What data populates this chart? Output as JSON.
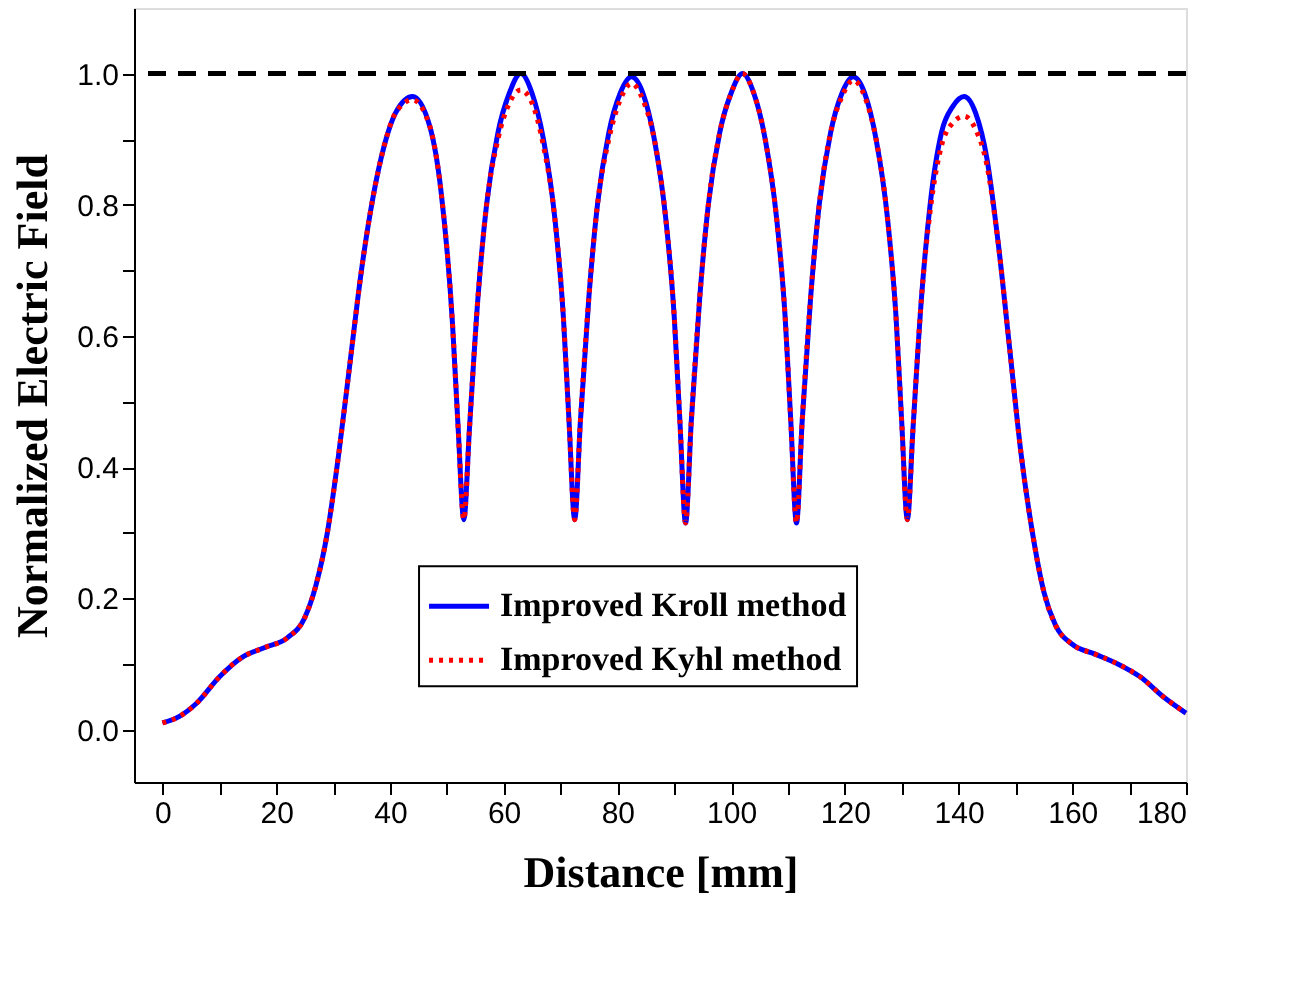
{
  "chart_data": {
    "type": "line",
    "xlabel": "Distance [mm]",
    "ylabel": "Normalized Electric Field",
    "x": [
      0,
      3,
      6,
      10,
      14,
      18,
      22,
      25,
      27,
      29,
      31,
      33,
      35,
      37,
      39,
      41,
      44,
      47,
      49,
      51,
      52,
      53,
      54,
      55.5,
      57,
      59,
      61,
      63,
      65,
      67,
      69,
      70.5,
      71.5,
      72.5,
      73.5,
      75,
      76.5,
      78.5,
      80.5,
      82.5,
      84.5,
      86.5,
      88.5,
      90,
      91,
      92,
      93,
      94.5,
      96,
      98,
      100,
      102,
      104,
      106,
      108,
      109.5,
      110.5,
      111.5,
      112.5,
      114,
      115.5,
      117.5,
      119.5,
      121.5,
      123.5,
      125.5,
      127.5,
      129,
      130,
      131,
      132,
      133.5,
      135,
      137,
      139,
      141,
      143,
      145,
      147,
      149,
      151,
      153,
      155,
      157,
      160,
      164,
      168,
      172,
      176,
      180
    ],
    "series": [
      {
        "name": "Improved Kroll method",
        "color": "#0000ff",
        "line_style": "solid",
        "values": [
          0.01,
          0.02,
          0.04,
          0.08,
          0.11,
          0.125,
          0.14,
          0.17,
          0.22,
          0.3,
          0.42,
          0.56,
          0.7,
          0.81,
          0.89,
          0.94,
          0.965,
          0.92,
          0.82,
          0.62,
          0.46,
          0.32,
          0.46,
          0.66,
          0.8,
          0.91,
          0.97,
          1.0,
          0.97,
          0.9,
          0.78,
          0.63,
          0.47,
          0.32,
          0.47,
          0.66,
          0.8,
          0.91,
          0.97,
          0.995,
          0.97,
          0.9,
          0.78,
          0.63,
          0.47,
          0.315,
          0.47,
          0.66,
          0.8,
          0.91,
          0.97,
          1.0,
          0.97,
          0.9,
          0.78,
          0.63,
          0.47,
          0.315,
          0.47,
          0.66,
          0.8,
          0.91,
          0.97,
          0.995,
          0.97,
          0.9,
          0.78,
          0.63,
          0.47,
          0.32,
          0.46,
          0.66,
          0.8,
          0.91,
          0.95,
          0.965,
          0.94,
          0.87,
          0.74,
          0.58,
          0.42,
          0.3,
          0.21,
          0.16,
          0.13,
          0.115,
          0.1,
          0.08,
          0.05,
          0.025
        ]
      },
      {
        "name": "Improved Kyhl method",
        "color": "#ff0000",
        "line_style": "dotted",
        "values": [
          0.01,
          0.02,
          0.04,
          0.08,
          0.11,
          0.125,
          0.14,
          0.17,
          0.22,
          0.3,
          0.42,
          0.56,
          0.7,
          0.81,
          0.89,
          0.94,
          0.96,
          0.92,
          0.82,
          0.62,
          0.46,
          0.32,
          0.46,
          0.66,
          0.8,
          0.9,
          0.955,
          0.975,
          0.955,
          0.89,
          0.78,
          0.63,
          0.47,
          0.32,
          0.47,
          0.66,
          0.8,
          0.9,
          0.96,
          0.985,
          0.96,
          0.9,
          0.78,
          0.63,
          0.47,
          0.315,
          0.47,
          0.66,
          0.8,
          0.91,
          0.97,
          1.0,
          0.97,
          0.9,
          0.78,
          0.63,
          0.47,
          0.315,
          0.47,
          0.66,
          0.8,
          0.91,
          0.965,
          0.99,
          0.965,
          0.9,
          0.78,
          0.63,
          0.47,
          0.32,
          0.46,
          0.66,
          0.79,
          0.89,
          0.925,
          0.935,
          0.915,
          0.86,
          0.74,
          0.58,
          0.42,
          0.3,
          0.21,
          0.16,
          0.13,
          0.115,
          0.1,
          0.08,
          0.05,
          0.025
        ]
      }
    ],
    "xlim": [
      -5,
      180
    ],
    "ylim": [
      -0.08,
      1.1
    ],
    "xticks": [
      0,
      {
        "value": 10,
        "label": null
      },
      20,
      {
        "value": 30,
        "label": null
      },
      40,
      {
        "value": 50,
        "label": null
      },
      60,
      {
        "value": 70,
        "label": null
      },
      80,
      {
        "value": 90,
        "label": null
      },
      100,
      {
        "value": 110,
        "label": null
      },
      120,
      {
        "value": 130,
        "label": null
      },
      140,
      {
        "value": 150,
        "label": null
      },
      160,
      {
        "value": 170,
        "label": null
      },
      180
    ],
    "yticks": [
      {
        "value": 0,
        "label": "0.0"
      },
      {
        "value": 0.1,
        "label": null
      },
      {
        "value": 0.2,
        "label": "0.2"
      },
      {
        "value": 0.3,
        "label": null
      },
      {
        "value": 0.4,
        "label": "0.4"
      },
      {
        "value": 0.5,
        "label": null
      },
      {
        "value": 0.6,
        "label": "0.6"
      },
      {
        "value": 0.7,
        "label": null
      },
      {
        "value": 0.8,
        "label": "0.8"
      },
      {
        "value": 0.9,
        "label": null
      },
      {
        "value": 1.0,
        "label": "1.0"
      }
    ],
    "ref_lines": [
      {
        "axis": "y",
        "value": 1.0,
        "color": "#000000",
        "line_style": "dashed"
      }
    ],
    "grid": false,
    "legend": "bottom",
    "marker": "none"
  }
}
